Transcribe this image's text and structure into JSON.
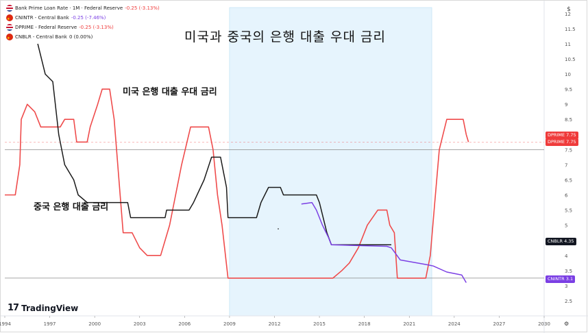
{
  "legend": [
    {
      "flag": "us",
      "name": "Bank Prime Loan Rate · 1M · Federal Reserve",
      "change": "-0.25 (-3.13%)"
    },
    {
      "flag": "cn",
      "name": "CNINTR - Central Bank",
      "change": "-0.25 (-7.46%)"
    },
    {
      "flag": "us",
      "name": "DPRIME - Federal Reserve",
      "change": "-0.25 (-3.13%)"
    },
    {
      "flag": "cn",
      "name": "CNBLR - Central Bank",
      "change": "0 (0.00%)"
    }
  ],
  "title": "미국과 중국의 은행 대출 우대 금리",
  "annotations": {
    "us": "미국 은행 대출 우대 금리",
    "cn": "중국 은행 대출 금리"
  },
  "brand": "TradingView",
  "brand_mark": "17",
  "scale_button": "$",
  "badges": [
    {
      "label": "DPRIME",
      "value": "7.75",
      "color": "#ef3b3b"
    },
    {
      "label": "DPRIME",
      "value": "7.75",
      "color": "#ef3b3b"
    },
    {
      "label": "CNBLR",
      "value": "4.35",
      "color": "#131722"
    },
    {
      "label": "CNINTR",
      "value": "3.1",
      "color": "#7b3fe4"
    }
  ],
  "colors": {
    "us": "#ef4b4b",
    "cnblr": "#1a1a1a",
    "cnintr": "#7b3fe4",
    "shade": "#e6f4fd",
    "hline": "#888888"
  },
  "chart_data": {
    "type": "line",
    "title": "미국과 중국의 은행 대출 우대 금리",
    "xlim": [
      1994,
      2030
    ],
    "ylim": [
      2,
      12
    ],
    "x_ticks": [
      "1994",
      "1997",
      "2000",
      "2003",
      "2006",
      "2009",
      "2012",
      "2015",
      "2018",
      "2021",
      "2024",
      "2027",
      "2030"
    ],
    "y_ticks": [
      "2.5",
      "3",
      "3.5",
      "4",
      "4.5",
      "5",
      "5.5",
      "6",
      "6.5",
      "7",
      "7.5",
      "8",
      "8.5",
      "9",
      "9.5",
      "10",
      "10.5",
      "11",
      "11.5",
      "12"
    ],
    "shaded_region": [
      2009.0,
      2022.5
    ],
    "reference_lines": [
      7.5,
      3.25
    ],
    "series": [
      {
        "name": "Bank Prime Loan Rate",
        "key": "us",
        "points": [
          [
            1994.0,
            6.0
          ],
          [
            1994.7,
            6.0
          ],
          [
            1995.0,
            7.0
          ],
          [
            1995.1,
            8.5
          ],
          [
            1995.5,
            9.0
          ],
          [
            1996.0,
            8.75
          ],
          [
            1996.4,
            8.25
          ],
          [
            1997.7,
            8.25
          ],
          [
            1998.0,
            8.5
          ],
          [
            1998.6,
            8.5
          ],
          [
            1998.8,
            7.75
          ],
          [
            1999.5,
            7.75
          ],
          [
            1999.7,
            8.25
          ],
          [
            2000.2,
            9.0
          ],
          [
            2000.5,
            9.5
          ],
          [
            2001.0,
            9.5
          ],
          [
            2001.3,
            8.5
          ],
          [
            2001.7,
            6.0
          ],
          [
            2001.9,
            4.75
          ],
          [
            2002.5,
            4.75
          ],
          [
            2003.0,
            4.25
          ],
          [
            2003.5,
            4.0
          ],
          [
            2004.4,
            4.0
          ],
          [
            2005.0,
            5.0
          ],
          [
            2005.8,
            7.0
          ],
          [
            2006.4,
            8.25
          ],
          [
            2007.6,
            8.25
          ],
          [
            2007.9,
            7.5
          ],
          [
            2008.2,
            6.0
          ],
          [
            2008.5,
            5.0
          ],
          [
            2008.9,
            3.25
          ],
          [
            2015.9,
            3.25
          ],
          [
            2016.5,
            3.5
          ],
          [
            2017.0,
            3.75
          ],
          [
            2017.6,
            4.25
          ],
          [
            2018.2,
            5.0
          ],
          [
            2018.9,
            5.5
          ],
          [
            2019.5,
            5.5
          ],
          [
            2019.7,
            5.0
          ],
          [
            2020.0,
            4.75
          ],
          [
            2020.2,
            3.25
          ],
          [
            2022.1,
            3.25
          ],
          [
            2022.4,
            4.0
          ],
          [
            2022.7,
            5.75
          ],
          [
            2023.0,
            7.5
          ],
          [
            2023.5,
            8.5
          ],
          [
            2024.6,
            8.5
          ],
          [
            2024.8,
            8.0
          ],
          [
            2024.95,
            7.75
          ]
        ]
      },
      {
        "name": "CNBLR - Central Bank",
        "key": "cnblr",
        "points": [
          [
            1996.2,
            11.0
          ],
          [
            1996.7,
            10.0
          ],
          [
            1997.2,
            9.75
          ],
          [
            1997.6,
            8.0
          ],
          [
            1998.0,
            7.0
          ],
          [
            1998.6,
            6.5
          ],
          [
            1998.9,
            6.0
          ],
          [
            1999.5,
            5.75
          ],
          [
            2002.2,
            5.75
          ],
          [
            2002.4,
            5.25
          ],
          [
            2004.7,
            5.25
          ],
          [
            2004.8,
            5.5
          ],
          [
            2006.3,
            5.5
          ],
          [
            2006.6,
            5.75
          ],
          [
            2007.3,
            6.5
          ],
          [
            2007.8,
            7.25
          ],
          [
            2008.4,
            7.25
          ],
          [
            2008.8,
            6.25
          ],
          [
            2008.9,
            5.25
          ],
          [
            2010.8,
            5.25
          ],
          [
            2011.1,
            5.75
          ],
          [
            2011.6,
            6.25
          ],
          [
            2012.4,
            6.25
          ],
          [
            2012.6,
            6.0
          ],
          [
            2014.8,
            6.0
          ],
          [
            2015.0,
            5.75
          ],
          [
            2015.5,
            4.75
          ],
          [
            2015.8,
            4.35
          ],
          [
            2019.8,
            4.35
          ]
        ]
      },
      {
        "name": "CNINTR - Central Bank",
        "key": "cnintr",
        "points": [
          [
            2013.8,
            5.7
          ],
          [
            2014.5,
            5.75
          ],
          [
            2014.8,
            5.5
          ],
          [
            2015.2,
            5.0
          ],
          [
            2015.6,
            4.6
          ],
          [
            2015.8,
            4.35
          ],
          [
            2019.5,
            4.3
          ],
          [
            2019.8,
            4.25
          ],
          [
            2020.1,
            4.05
          ],
          [
            2020.4,
            3.85
          ],
          [
            2022.1,
            3.7
          ],
          [
            2022.6,
            3.65
          ],
          [
            2023.5,
            3.45
          ],
          [
            2024.5,
            3.35
          ],
          [
            2024.8,
            3.1
          ]
        ]
      }
    ]
  }
}
